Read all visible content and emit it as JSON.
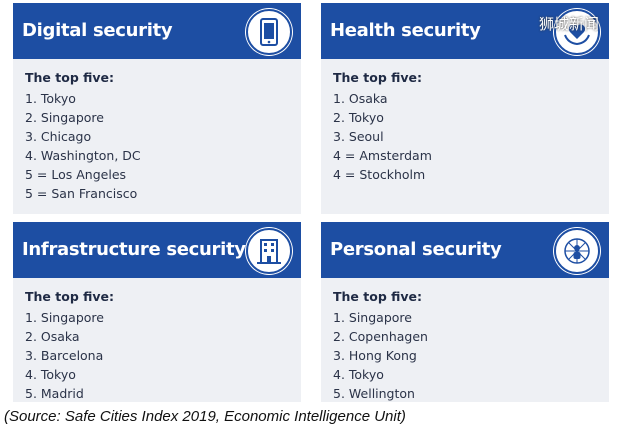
{
  "watermark": "狮城新闻",
  "source_note": "(Source: Safe Cities Index 2019, Economic Intelligence Unit)",
  "colors": {
    "header": "#1d4ea3",
    "card_bg": "#eef0f4",
    "text": "#2b3348"
  },
  "cards": [
    {
      "title": "Digital security",
      "icon": "tablet-icon",
      "subtitle": "The top five:",
      "items": [
        "1. Tokyo",
        "2. Singapore",
        "3. Chicago",
        "4. Washington, DC",
        "5 = Los Angeles",
        "5 = San Francisco"
      ]
    },
    {
      "title": "Health security",
      "icon": "heart-hands-icon",
      "subtitle": "The top five:",
      "items": [
        "1. Osaka",
        "2. Tokyo",
        "3. Seoul",
        "4 = Amsterdam",
        "4 = Stockholm"
      ]
    },
    {
      "title": "Infrastructure security",
      "icon": "building-icon",
      "subtitle": "The top five:",
      "items": [
        "1. Singapore",
        "2. Osaka",
        "3. Barcelona",
        "4. Tokyo",
        "5. Madrid"
      ]
    },
    {
      "title": "Personal security",
      "icon": "person-network-icon",
      "subtitle": "The top five:",
      "items": [
        "1. Singapore",
        "2. Copenhagen",
        "3. Hong Kong",
        "4. Tokyo",
        "5. Wellington"
      ]
    }
  ]
}
